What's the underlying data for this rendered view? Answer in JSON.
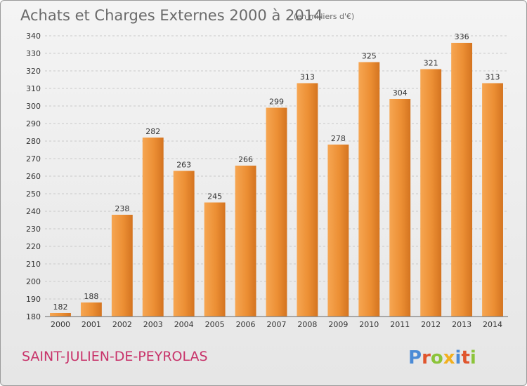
{
  "chart_data": {
    "type": "bar",
    "title": "Achats et Charges Externes 2000 à 2014",
    "subtitle": "(en milliers d'€)",
    "categories": [
      "2000",
      "2001",
      "2002",
      "2003",
      "2004",
      "2005",
      "2006",
      "2007",
      "2008",
      "2009",
      "2010",
      "2011",
      "2012",
      "2013",
      "2014"
    ],
    "values": [
      182,
      188,
      238,
      282,
      263,
      245,
      266,
      299,
      313,
      278,
      325,
      304,
      321,
      336,
      313
    ],
    "ylim": [
      180,
      340
    ],
    "yticks": [
      180,
      190,
      200,
      210,
      220,
      230,
      240,
      250,
      260,
      270,
      280,
      290,
      300,
      310,
      320,
      330,
      340
    ],
    "grid": true,
    "bar_color": "#e98c2e"
  },
  "footer": {
    "commune": "SAINT-JULIEN-DE-PEYROLAS",
    "brand": "Proxiti",
    "brand_colors": [
      "#4b8bd6",
      "#e0552d",
      "#8cc43a",
      "#f2b01e",
      "#4b8bd6",
      "#e0552d",
      "#8cc43a"
    ]
  }
}
